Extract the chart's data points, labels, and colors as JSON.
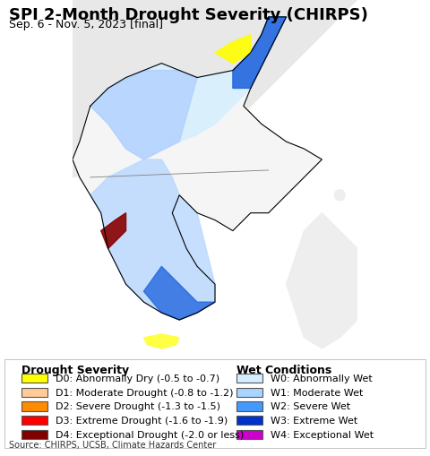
{
  "title": "SPI 2-Month Drought Severity (CHIRPS)",
  "subtitle": "Sep. 6 - Nov. 5, 2023 [final]",
  "source": "Source: CHIRPS, UCSB, Climate Hazards Center",
  "background_color": "#e8f4f8",
  "land_color": "#f0f0f0",
  "border_color": "#333333",
  "legend_bg": "#ffffff",
  "drought_labels": [
    "D0: Abnormally Dry (-0.5 to -0.7)",
    "D1: Moderate Drought (-0.8 to -1.2)",
    "D2: Severe Drought (-1.3 to -1.5)",
    "D3: Extreme Drought (-1.6 to -1.9)",
    "D4: Exceptional Drought (-2.0 or less)"
  ],
  "drought_colors": [
    "#ffff00",
    "#ffcc99",
    "#ff8c00",
    "#ff0000",
    "#800000"
  ],
  "wet_labels": [
    "W0: Abnormally Wet",
    "W1: Moderate Wet",
    "W2: Severe Wet",
    "W3: Extreme Wet",
    "W4: Exceptional Wet"
  ],
  "wet_colors": [
    "#d4eeff",
    "#a8d4ff",
    "#4499ff",
    "#0033cc",
    "#cc00cc"
  ],
  "drought_title": "Drought Severity",
  "wet_title": "Wet Conditions",
  "title_fontsize": 13,
  "subtitle_fontsize": 9,
  "legend_fontsize": 8,
  "source_fontsize": 7
}
